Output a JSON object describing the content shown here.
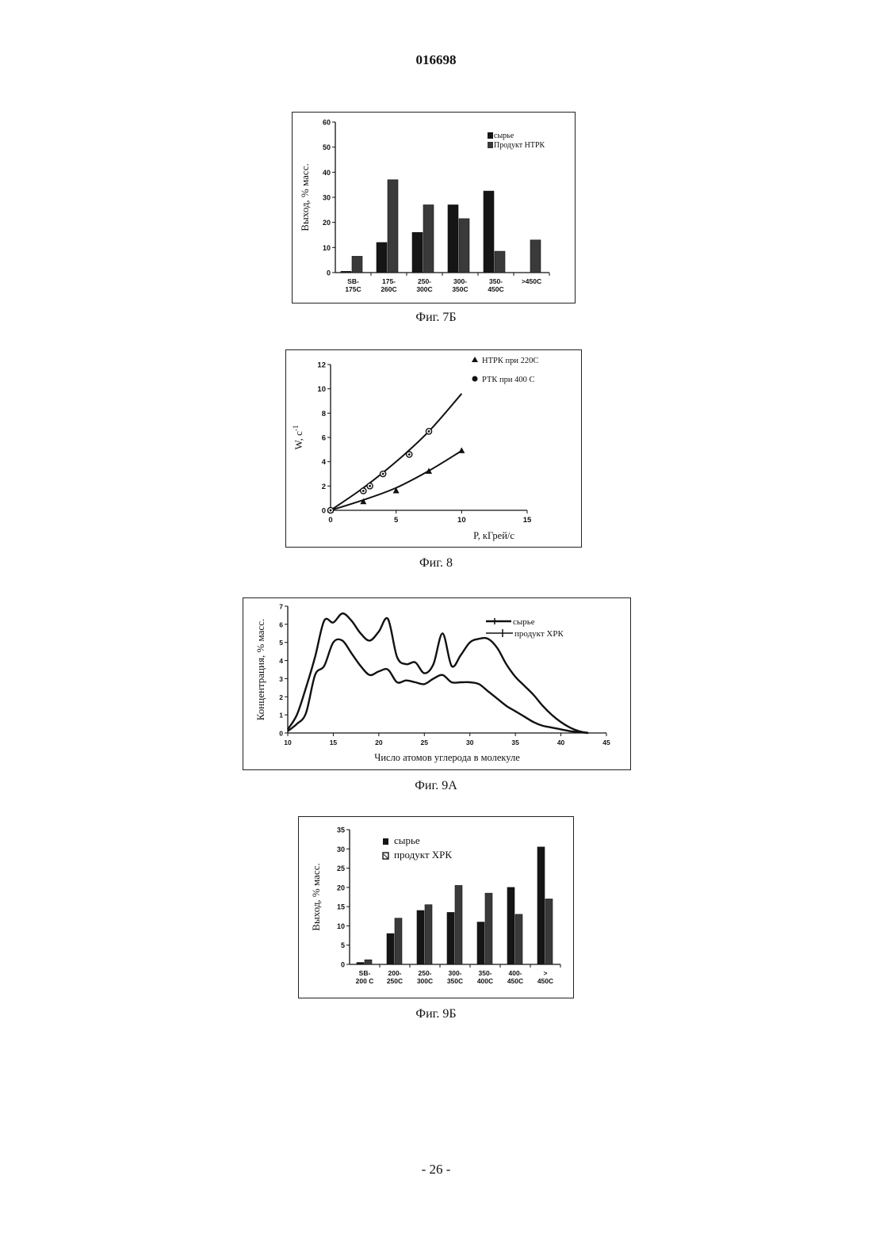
{
  "document": {
    "number": "016698",
    "page_label": "- 26 -"
  },
  "chart_data": [
    {
      "id": "fig7b",
      "type": "bar",
      "caption": "Фиг. 7Б",
      "ylabel": "Выход, % масс.",
      "ylim": [
        0,
        60
      ],
      "yticks": [
        0,
        10,
        20,
        30,
        40,
        50,
        60
      ],
      "categories": [
        [
          "SB-",
          "175C"
        ],
        [
          "175-",
          "260C"
        ],
        [
          "250-",
          "300C"
        ],
        [
          "300-",
          "350C"
        ],
        [
          "350-",
          "450C"
        ],
        [
          ">450C"
        ]
      ],
      "series": [
        {
          "name": "сырье",
          "values": [
            0.5,
            12,
            16,
            27,
            32.5,
            0
          ]
        },
        {
          "name": "Продукт НТРК",
          "values": [
            6.5,
            37,
            27,
            21.5,
            8.5,
            13
          ]
        }
      ],
      "legend": "top-right"
    },
    {
      "id": "fig8",
      "type": "line",
      "caption": "Фиг. 8",
      "ylabel": "W, с",
      "ylabel_sup": "-1",
      "xlabel": "P, кГрей/с",
      "xlim": [
        0,
        15
      ],
      "ylim": [
        0,
        12
      ],
      "xticks": [
        0,
        5,
        10,
        15
      ],
      "yticks": [
        0,
        2,
        4,
        6,
        8,
        10,
        12
      ],
      "series": [
        {
          "name": "НТРК при 220С",
          "marker": "triangle",
          "points": [
            [
              0,
              0
            ],
            [
              2.5,
              0.7
            ],
            [
              5,
              1.6
            ],
            [
              7.5,
              3.2
            ],
            [
              10,
              4.9
            ]
          ],
          "curve": [
            [
              0,
              0
            ],
            [
              2.5,
              0.85
            ],
            [
              5,
              1.85
            ],
            [
              7.5,
              3.25
            ],
            [
              10,
              4.9
            ]
          ]
        },
        {
          "name": "РТК при 400 С",
          "marker": "circle",
          "points": [
            [
              0,
              0
            ],
            [
              2.5,
              1.6
            ],
            [
              3,
              2
            ],
            [
              4,
              3
            ],
            [
              6,
              4.6
            ],
            [
              7.5,
              6.5
            ]
          ],
          "curve": [
            [
              0,
              0
            ],
            [
              2.5,
              1.85
            ],
            [
              5,
              4.0
            ],
            [
              7.5,
              6.5
            ],
            [
              10,
              9.6
            ]
          ]
        }
      ],
      "legend": "top-right"
    },
    {
      "id": "fig9a",
      "type": "line",
      "caption": "Фиг. 9А",
      "ylabel": "Концентрация, % масс.",
      "xlabel": "Число атомов углерода в молекуле",
      "xlim": [
        10,
        45
      ],
      "ylim": [
        0,
        7
      ],
      "xticks": [
        10,
        15,
        20,
        25,
        30,
        35,
        40,
        45
      ],
      "yticks": [
        0,
        1,
        2,
        3,
        4,
        5,
        6,
        7
      ],
      "series": [
        {
          "name": "сырье",
          "points": [
            [
              10,
              0.1
            ],
            [
              11,
              0.5
            ],
            [
              12,
              1.1
            ],
            [
              13,
              3.2
            ],
            [
              14,
              3.7
            ],
            [
              15,
              5.0
            ],
            [
              16,
              5.1
            ],
            [
              17,
              4.4
            ],
            [
              18,
              3.7
            ],
            [
              19,
              3.2
            ],
            [
              20,
              3.4
            ],
            [
              21,
              3.5
            ],
            [
              22,
              2.8
            ],
            [
              23,
              2.9
            ],
            [
              24,
              2.8
            ],
            [
              25,
              2.7
            ],
            [
              26,
              3.0
            ],
            [
              27,
              3.2
            ],
            [
              28,
              2.8
            ],
            [
              29,
              2.8
            ],
            [
              30,
              2.8
            ],
            [
              31,
              2.7
            ],
            [
              32,
              2.3
            ],
            [
              33,
              1.9
            ],
            [
              34,
              1.5
            ],
            [
              35,
              1.2
            ],
            [
              36,
              0.9
            ],
            [
              37,
              0.6
            ],
            [
              38,
              0.4
            ],
            [
              39,
              0.3
            ],
            [
              40,
              0.2
            ],
            [
              41,
              0.1
            ],
            [
              42,
              0.05
            ],
            [
              43,
              0
            ]
          ]
        },
        {
          "name": "продукт ХРК",
          "points": [
            [
              10,
              0.2
            ],
            [
              11,
              1.0
            ],
            [
              12,
              2.5
            ],
            [
              13,
              4.2
            ],
            [
              14,
              6.2
            ],
            [
              15,
              6.1
            ],
            [
              16,
              6.6
            ],
            [
              17,
              6.2
            ],
            [
              18,
              5.5
            ],
            [
              19,
              5.1
            ],
            [
              20,
              5.6
            ],
            [
              21,
              6.3
            ],
            [
              22,
              4.2
            ],
            [
              23,
              3.8
            ],
            [
              24,
              3.9
            ],
            [
              25,
              3.3
            ],
            [
              26,
              3.8
            ],
            [
              27,
              5.5
            ],
            [
              28,
              3.7
            ],
            [
              29,
              4.3
            ],
            [
              30,
              5.0
            ],
            [
              31,
              5.2
            ],
            [
              32,
              5.2
            ],
            [
              33,
              4.7
            ],
            [
              34,
              3.8
            ],
            [
              35,
              3.1
            ],
            [
              36,
              2.6
            ],
            [
              37,
              2.1
            ],
            [
              38,
              1.5
            ],
            [
              39,
              1.0
            ],
            [
              40,
              0.6
            ],
            [
              41,
              0.3
            ],
            [
              42,
              0.1
            ],
            [
              43,
              0
            ]
          ]
        }
      ],
      "legend": "top-right"
    },
    {
      "id": "fig9b",
      "type": "bar",
      "caption": "Фиг. 9Б",
      "ylabel": "Выход, % масс.",
      "ylim": [
        0,
        35
      ],
      "yticks": [
        0,
        5,
        10,
        15,
        20,
        25,
        30,
        35
      ],
      "categories": [
        [
          "SB-",
          "200 C"
        ],
        [
          "200-",
          "250C"
        ],
        [
          "250-",
          "300C"
        ],
        [
          "300-",
          "350C"
        ],
        [
          "350-",
          "400C"
        ],
        [
          "400-",
          "450C"
        ],
        [
          ">",
          "450C"
        ]
      ],
      "series": [
        {
          "name": "сырье",
          "values": [
            0.5,
            8,
            14,
            13.5,
            11,
            20,
            30.5
          ]
        },
        {
          "name": "продукт ХРК",
          "values": [
            1.2,
            12,
            15.5,
            20.5,
            18.5,
            13,
            17
          ]
        }
      ],
      "legend": "top-left"
    }
  ],
  "colors": {
    "ink": "#111111",
    "bar_dark": "#151515",
    "bar_product": "#3a3a3a"
  }
}
